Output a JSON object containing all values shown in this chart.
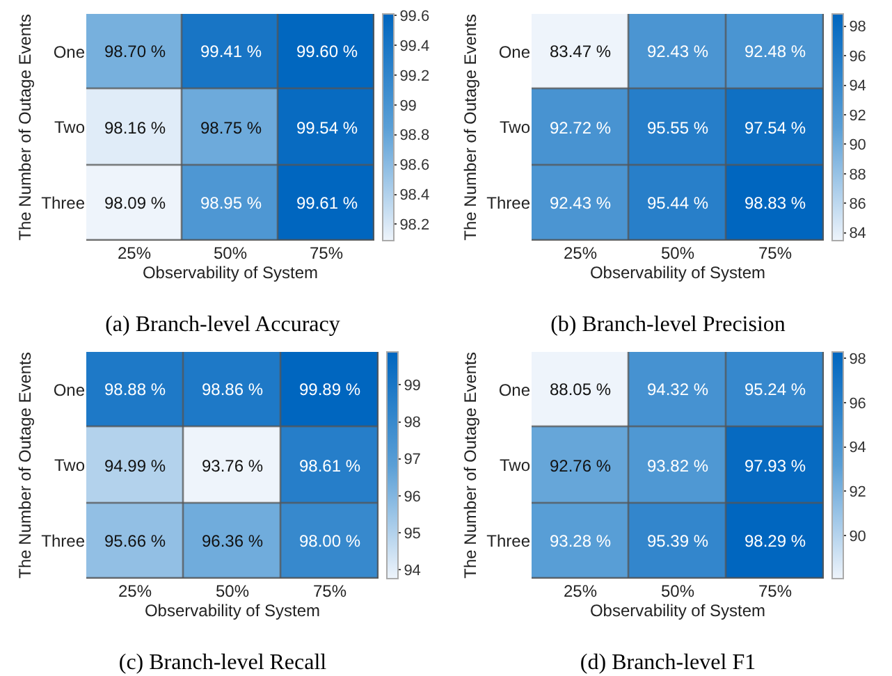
{
  "chart_data": [
    {
      "type": "heatmap",
      "title": "(a) Branch-level Accuracy",
      "xlabel": "Observability of System",
      "ylabel": "The Number of Outage Events",
      "categories": [
        "25%",
        "50%",
        "75%"
      ],
      "y_categories": [
        "One",
        "Two",
        "Three"
      ],
      "cells": [
        [
          98.7,
          99.41,
          99.6
        ],
        [
          98.16,
          98.75,
          99.54
        ],
        [
          98.09,
          98.95,
          99.61
        ]
      ],
      "cell_labels": [
        [
          "98.70 %",
          "99.41 %",
          "99.60 %"
        ],
        [
          "98.16 %",
          "98.75 %",
          "99.54 %"
        ],
        [
          "98.09 %",
          "98.95 %",
          "99.61 %"
        ]
      ],
      "clim": [
        98.09,
        99.61
      ],
      "cticks": [
        98.2,
        98.4,
        98.6,
        98.8,
        {
          "value": 99,
          "label": "99"
        },
        99.2,
        99.4,
        99.6
      ]
    },
    {
      "type": "heatmap",
      "title": "(b) Branch-level Precision",
      "xlabel": "Observability of System",
      "ylabel": "The Number of Outage Events",
      "categories": [
        "25%",
        "50%",
        "75%"
      ],
      "y_categories": [
        "One",
        "Two",
        "Three"
      ],
      "cells": [
        [
          83.47,
          92.43,
          92.48
        ],
        [
          92.72,
          95.55,
          97.54
        ],
        [
          92.43,
          95.44,
          98.83
        ]
      ],
      "cell_labels": [
        [
          "83.47 %",
          "92.43 %",
          "92.48 %"
        ],
        [
          "92.72 %",
          "95.55 %",
          "97.54 %"
        ],
        [
          "92.43 %",
          "95.44 %",
          "98.83 %"
        ]
      ],
      "clim": [
        83.47,
        98.83
      ],
      "cticks": [
        84,
        86,
        88,
        90,
        92,
        94,
        96,
        98
      ]
    },
    {
      "type": "heatmap",
      "title": "(c) Branch-level Recall",
      "xlabel": "Observability of System",
      "ylabel": "The Number of Outage Events",
      "categories": [
        "25%",
        "50%",
        "75%"
      ],
      "y_categories": [
        "One",
        "Two",
        "Three"
      ],
      "cells": [
        [
          98.88,
          98.86,
          99.89
        ],
        [
          94.99,
          93.76,
          98.61
        ],
        [
          95.66,
          96.36,
          98.0
        ]
      ],
      "cell_labels": [
        [
          "98.88 %",
          "98.86 %",
          "99.89 %"
        ],
        [
          "94.99 %",
          "93.76 %",
          "98.61 %"
        ],
        [
          "95.66 %",
          "96.36 %",
          "98.00 %"
        ]
      ],
      "clim": [
        93.76,
        99.89
      ],
      "cticks": [
        94,
        95,
        96,
        97,
        98,
        99
      ]
    },
    {
      "type": "heatmap",
      "title": "(d) Branch-level F1",
      "xlabel": "Observability of System",
      "ylabel": "The Number of Outage Events",
      "categories": [
        "25%",
        "50%",
        "75%"
      ],
      "y_categories": [
        "One",
        "Two",
        "Three"
      ],
      "cells": [
        [
          88.05,
          94.32,
          95.24
        ],
        [
          92.76,
          93.82,
          97.93
        ],
        [
          93.28,
          95.39,
          98.29
        ]
      ],
      "cell_labels": [
        [
          "88.05 %",
          "94.32 %",
          "95.24 %"
        ],
        [
          "92.76 %",
          "93.82 %",
          "97.93 %"
        ],
        [
          "93.28 %",
          "95.39 %",
          "98.29 %"
        ]
      ],
      "clim": [
        88.05,
        98.29
      ],
      "cticks": [
        90,
        92,
        94,
        96,
        98
      ]
    }
  ]
}
